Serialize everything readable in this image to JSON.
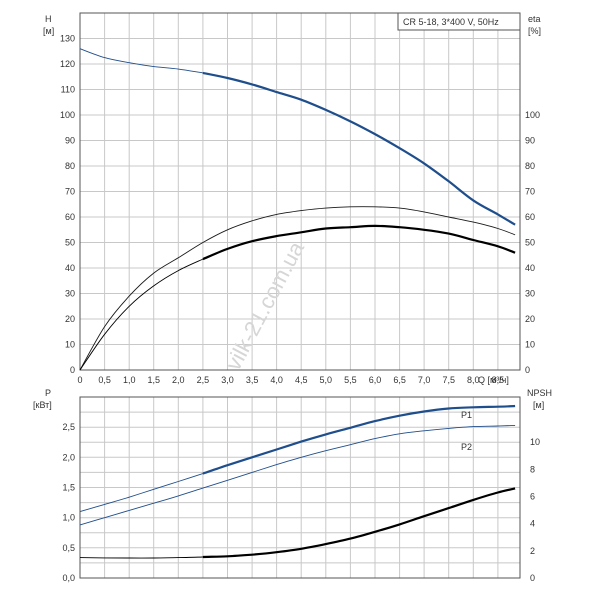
{
  "chart_data": [
    {
      "type": "line",
      "title": "CR 5-18, 3*400 V, 50Hz",
      "xlabel": "Q [м³/ч]",
      "ylabel": "H",
      "ylabel_unit": "[м]",
      "ylabel_right": "eta",
      "ylabel_right_unit": "[%]",
      "xlim": [
        0,
        8.95
      ],
      "ylim": [
        0,
        140
      ],
      "ylim_right": [
        0,
        140
      ],
      "x_ticks": [
        "0",
        "0,5",
        "1,0",
        "1,5",
        "2,0",
        "2,5",
        "3,0",
        "3,5",
        "4,0",
        "4,5",
        "5,0",
        "5,5",
        "6,0",
        "6,5",
        "7,0",
        "7,5",
        "8,0",
        "8,5"
      ],
      "y_ticks": [
        "0",
        "10",
        "20",
        "30",
        "40",
        "50",
        "60",
        "70",
        "80",
        "90",
        "100",
        "110",
        "120",
        "130"
      ],
      "y_ticks_right": [
        "0",
        "10",
        "20",
        "30",
        "40",
        "50",
        "60",
        "70",
        "80",
        "90",
        "100"
      ],
      "grid": true,
      "series": [
        {
          "name": "H",
          "color": "#1f4e8c",
          "thin_to_x": 2.5,
          "x": [
            0,
            0.5,
            1.0,
            1.5,
            2.0,
            2.5,
            3.0,
            3.5,
            4.0,
            4.5,
            5.0,
            5.5,
            6.0,
            6.5,
            7.0,
            7.5,
            8.0,
            8.5,
            8.85
          ],
          "y": [
            126,
            122.5,
            120.5,
            119,
            118,
            116.5,
            114.5,
            112,
            109,
            106,
            102,
            97.5,
            92.5,
            87,
            81,
            74,
            66.5,
            61,
            57
          ]
        },
        {
          "name": "eta P1",
          "color": "#1a1a1a",
          "thin_to_x": 9,
          "x": [
            0,
            0.5,
            1.0,
            1.5,
            2.0,
            2.5,
            3.0,
            3.5,
            4.0,
            4.5,
            5.0,
            5.5,
            6.0,
            6.5,
            7.0,
            7.5,
            8.0,
            8.5,
            8.85
          ],
          "y": [
            0,
            17,
            29,
            38,
            44,
            50,
            55,
            58.5,
            61,
            62.5,
            63.5,
            64,
            64,
            63.5,
            62,
            60,
            58,
            55.5,
            53
          ]
        },
        {
          "name": "eta P2",
          "color": "#000000",
          "thin_to_x": 2.5,
          "x": [
            0,
            0.5,
            1.0,
            1.5,
            2.0,
            2.5,
            3.0,
            3.5,
            4.0,
            4.5,
            5.0,
            5.5,
            6.0,
            6.5,
            7.0,
            7.5,
            8.0,
            8.5,
            8.85
          ],
          "y": [
            0,
            14,
            25,
            33,
            39,
            43.5,
            47.5,
            50.5,
            52.5,
            54,
            55.5,
            56,
            56.5,
            56,
            55,
            53.5,
            51,
            48.5,
            46
          ]
        }
      ]
    },
    {
      "type": "line",
      "title": "",
      "xlabel": "",
      "ylabel": "P",
      "ylabel_unit": "[кВт]",
      "ylabel_right": "NPSH",
      "ylabel_right_unit": "[м]",
      "xlim": [
        0,
        8.95
      ],
      "ylim": [
        0,
        3.0
      ],
      "ylim_right": [
        0,
        13.333
      ],
      "y_ticks": [
        "0,0",
        "0,5",
        "1,0",
        "1,5",
        "2,0",
        "2,5"
      ],
      "y_ticks_right": [
        "0",
        "2",
        "4",
        "6",
        "8",
        "10"
      ],
      "grid": true,
      "series": [
        {
          "name": "P1",
          "color": "#1f4e8c",
          "axis": "left",
          "thin_to_x": 2.5,
          "x": [
            0,
            0.5,
            1.0,
            1.5,
            2.0,
            2.5,
            3.0,
            3.5,
            4.0,
            4.5,
            5.0,
            5.5,
            6.0,
            6.5,
            7.0,
            7.5,
            8.0,
            8.5,
            8.85
          ],
          "y": [
            1.1,
            1.22,
            1.34,
            1.47,
            1.6,
            1.73,
            1.87,
            2.0,
            2.13,
            2.26,
            2.38,
            2.49,
            2.6,
            2.69,
            2.76,
            2.81,
            2.83,
            2.84,
            2.85
          ]
        },
        {
          "name": "P2",
          "color": "#1f4e8c",
          "axis": "left",
          "thin_to_x": 9,
          "x": [
            0,
            0.5,
            1.0,
            1.5,
            2.0,
            2.5,
            3.0,
            3.5,
            4.0,
            4.5,
            5.0,
            5.5,
            6.0,
            6.5,
            7.0,
            7.5,
            8.0,
            8.5,
            8.85
          ],
          "y": [
            0.88,
            1.0,
            1.12,
            1.24,
            1.36,
            1.49,
            1.62,
            1.75,
            1.88,
            2.0,
            2.11,
            2.21,
            2.31,
            2.39,
            2.44,
            2.48,
            2.51,
            2.52,
            2.53
          ]
        },
        {
          "name": "NPSH",
          "color": "#000000",
          "axis": "right",
          "thin_to_x": 2.5,
          "x": [
            0,
            0.5,
            1.0,
            1.5,
            2.0,
            2.5,
            3.0,
            3.5,
            4.0,
            4.5,
            5.0,
            5.5,
            6.0,
            6.5,
            7.0,
            7.5,
            8.0,
            8.5,
            8.85
          ],
          "y": [
            1.5,
            1.48,
            1.47,
            1.47,
            1.5,
            1.55,
            1.6,
            1.72,
            1.9,
            2.15,
            2.5,
            2.9,
            3.4,
            3.95,
            4.55,
            5.15,
            5.75,
            6.3,
            6.6
          ]
        }
      ]
    }
  ],
  "watermark": "vilk-21.com.ua"
}
